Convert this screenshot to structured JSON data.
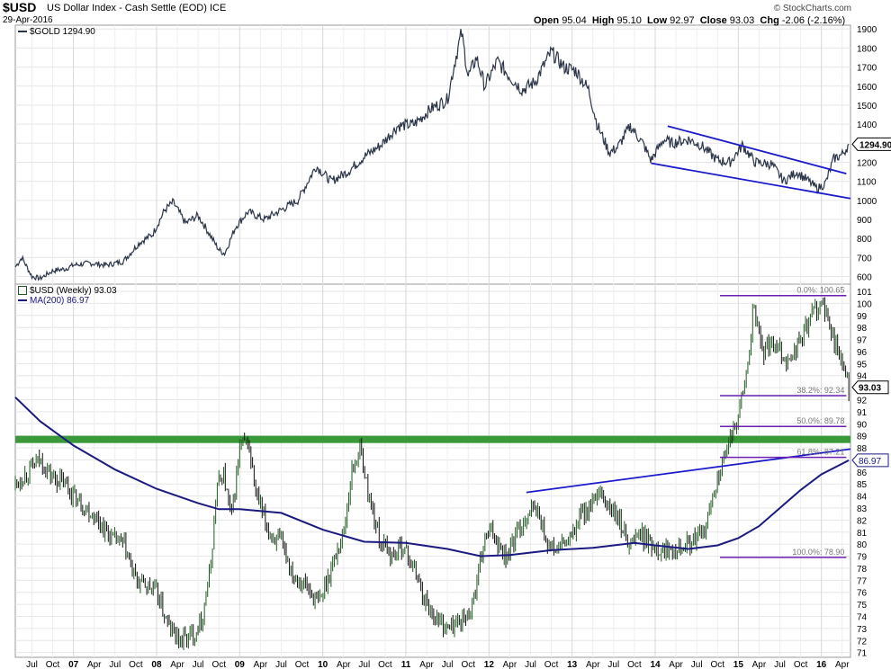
{
  "header": {
    "symbol": "$USD",
    "description": "US Dollar Index - Cash Settle (EOD)  ICE",
    "date": "29-Apr-2016",
    "open_label": "Open",
    "open": "95.04",
    "high_label": "High",
    "high": "95.10",
    "low_label": "Low",
    "low": "92.97",
    "close_label": "Close",
    "close": "93.03",
    "chg_label": "Chg",
    "chg": "-2.06 (-2.16%)",
    "credit": "© StockCharts.com"
  },
  "colors": {
    "gold_line": "#2b3548",
    "usd_bar": "#1f5a1f",
    "ma_line": "#1a1a80",
    "trend_line": "#1a1acc",
    "fib_line": "#6a1fb0",
    "support_band": "#3a9a3a",
    "grid": "#e6e6e6"
  },
  "chart_data": [
    {
      "type": "line",
      "panel": "top",
      "legend": "$GOLD 1294.90",
      "last_value_label": "1294.90",
      "y_ticks": [
        600,
        700,
        800,
        900,
        1000,
        1100,
        1200,
        1300,
        1400,
        1500,
        1600,
        1700,
        1800,
        1900
      ],
      "ylim": [
        560,
        1920
      ],
      "x_decimal_year_range": [
        2006.3,
        2016.35
      ],
      "series": [
        {
          "name": "$GOLD",
          "x": [
            2006.3,
            2006.38,
            2006.5,
            2006.6,
            2006.75,
            2006.9,
            2007.0,
            2007.2,
            2007.4,
            2007.6,
            2007.8,
            2007.95,
            2008.1,
            2008.2,
            2008.35,
            2008.5,
            2008.6,
            2008.75,
            2008.82,
            2008.95,
            2009.1,
            2009.3,
            2009.5,
            2009.7,
            2009.92,
            2010.1,
            2010.3,
            2010.5,
            2010.7,
            2010.9,
            2011.1,
            2011.3,
            2011.5,
            2011.6,
            2011.67,
            2011.75,
            2011.85,
            2011.95,
            2012.1,
            2012.25,
            2012.4,
            2012.55,
            2012.75,
            2012.9,
            2013.05,
            2013.2,
            2013.3,
            2013.45,
            2013.55,
            2013.7,
            2013.85,
            2013.95,
            2014.1,
            2014.2,
            2014.4,
            2014.55,
            2014.75,
            2014.9,
            2015.05,
            2015.2,
            2015.4,
            2015.55,
            2015.7,
            2015.85,
            2015.95,
            2016.05,
            2016.15,
            2016.25,
            2016.33
          ],
          "values": [
            650,
            700,
            600,
            590,
            630,
            640,
            660,
            670,
            660,
            680,
            780,
            820,
            950,
            990,
            880,
            920,
            850,
            740,
            720,
            860,
            940,
            900,
            950,
            1000,
            1180,
            1100,
            1150,
            1230,
            1290,
            1390,
            1400,
            1480,
            1530,
            1750,
            1880,
            1650,
            1750,
            1600,
            1730,
            1650,
            1580,
            1620,
            1780,
            1700,
            1680,
            1580,
            1400,
            1250,
            1280,
            1390,
            1300,
            1210,
            1320,
            1300,
            1320,
            1290,
            1210,
            1200,
            1290,
            1200,
            1190,
            1100,
            1150,
            1100,
            1060,
            1090,
            1220,
            1240,
            1294.9
          ]
        }
      ],
      "trend_lines": [
        {
          "x": [
            2013.95,
            2016.35
          ],
          "values": [
            1195,
            1010
          ]
        },
        {
          "x": [
            2014.15,
            2016.3
          ],
          "values": [
            1390,
            1140
          ]
        }
      ]
    },
    {
      "type": "bar",
      "panel": "bottom",
      "legend": "$USD (Weekly) 93.03",
      "ma_legend": "MA(200) 86.97",
      "last_value_label": "93.03",
      "ma_last_label": "86.97",
      "y_ticks": [
        71,
        72,
        73,
        74,
        75,
        76,
        77,
        78,
        79,
        80,
        81,
        82,
        83,
        84,
        85,
        86,
        87,
        88,
        89,
        90,
        91,
        92,
        93,
        94,
        95,
        96,
        97,
        98,
        99,
        100,
        101
      ],
      "ylim": [
        70.6,
        101.6
      ],
      "x_ticks": [
        {
          "label": "Jul",
          "x": 2006.5
        },
        {
          "label": "Oct",
          "x": 2006.75
        },
        {
          "label": "07",
          "x": 2007.0
        },
        {
          "label": "Apr",
          "x": 2007.25
        },
        {
          "label": "Jul",
          "x": 2007.5
        },
        {
          "label": "Oct",
          "x": 2007.75
        },
        {
          "label": "08",
          "x": 2008.0
        },
        {
          "label": "Apr",
          "x": 2008.25
        },
        {
          "label": "Jul",
          "x": 2008.5
        },
        {
          "label": "Oct",
          "x": 2008.75
        },
        {
          "label": "09",
          "x": 2009.0
        },
        {
          "label": "Apr",
          "x": 2009.25
        },
        {
          "label": "Jul",
          "x": 2009.5
        },
        {
          "label": "Oct",
          "x": 2009.75
        },
        {
          "label": "10",
          "x": 2010.0
        },
        {
          "label": "Apr",
          "x": 2010.25
        },
        {
          "label": "Jul",
          "x": 2010.5
        },
        {
          "label": "Oct",
          "x": 2010.75
        },
        {
          "label": "11",
          "x": 2011.0
        },
        {
          "label": "Apr",
          "x": 2011.25
        },
        {
          "label": "Jul",
          "x": 2011.5
        },
        {
          "label": "Oct",
          "x": 2011.75
        },
        {
          "label": "12",
          "x": 2012.0
        },
        {
          "label": "Apr",
          "x": 2012.25
        },
        {
          "label": "Jul",
          "x": 2012.5
        },
        {
          "label": "Oct",
          "x": 2012.75
        },
        {
          "label": "13",
          "x": 2013.0
        },
        {
          "label": "Apr",
          "x": 2013.25
        },
        {
          "label": "Jul",
          "x": 2013.5
        },
        {
          "label": "Oct",
          "x": 2013.75
        },
        {
          "label": "14",
          "x": 2014.0
        },
        {
          "label": "Apr",
          "x": 2014.25
        },
        {
          "label": "Jul",
          "x": 2014.5
        },
        {
          "label": "Oct",
          "x": 2014.75
        },
        {
          "label": "15",
          "x": 2015.0
        },
        {
          "label": "Apr",
          "x": 2015.25
        },
        {
          "label": "Jul",
          "x": 2015.5
        },
        {
          "label": "Oct",
          "x": 2015.75
        },
        {
          "label": "16",
          "x": 2016.0
        },
        {
          "label": "Apr",
          "x": 2016.25
        }
      ],
      "series": [
        {
          "name": "$USD (Weekly)",
          "x": [
            2006.3,
            2006.45,
            2006.6,
            2006.75,
            2006.9,
            2007.0,
            2007.15,
            2007.3,
            2007.45,
            2007.6,
            2007.75,
            2007.9,
            2008.0,
            2008.15,
            2008.3,
            2008.45,
            2008.55,
            2008.65,
            2008.72,
            2008.8,
            2008.9,
            2009.0,
            2009.1,
            2009.2,
            2009.35,
            2009.5,
            2009.65,
            2009.8,
            2009.95,
            2010.1,
            2010.25,
            2010.35,
            2010.45,
            2010.55,
            2010.7,
            2010.85,
            2010.95,
            2011.1,
            2011.25,
            2011.35,
            2011.5,
            2011.62,
            2011.75,
            2011.85,
            2011.95,
            2012.05,
            2012.2,
            2012.35,
            2012.5,
            2012.6,
            2012.7,
            2012.8,
            2012.9,
            2013.0,
            2013.1,
            2013.2,
            2013.35,
            2013.45,
            2013.55,
            2013.7,
            2013.8,
            2013.95,
            2014.1,
            2014.25,
            2014.4,
            2014.5,
            2014.6,
            2014.7,
            2014.8,
            2014.9,
            2015.0,
            2015.1,
            2015.18,
            2015.3,
            2015.45,
            2015.6,
            2015.75,
            2015.85,
            2015.92,
            2016.0,
            2016.1,
            2016.2,
            2016.33
          ],
          "values": [
            85,
            86,
            87,
            85.5,
            85,
            84,
            83,
            82,
            80.5,
            80,
            77,
            76.5,
            76,
            73,
            72,
            72.5,
            74,
            78,
            84.5,
            86,
            82,
            88,
            88.5,
            84,
            81,
            80,
            77.5,
            76.5,
            75,
            78,
            81,
            86,
            88,
            84,
            80,
            79,
            80,
            78,
            75,
            74,
            73,
            73.5,
            74,
            76.5,
            80.5,
            81,
            79,
            81,
            83,
            82.5,
            80,
            79.5,
            80,
            80.5,
            82.5,
            83,
            84,
            83,
            82,
            80,
            81,
            80,
            79.5,
            80,
            80,
            80.5,
            81,
            84.5,
            86.5,
            88.5,
            91,
            94,
            99.5,
            96,
            97,
            95,
            97,
            98.5,
            99.5,
            100,
            98,
            96,
            93.03
          ]
        }
      ],
      "ma_series": {
        "name": "MA(200)",
        "x": [
          2006.3,
          2006.6,
          2007.0,
          2007.5,
          2008.0,
          2008.5,
          2008.75,
          2009.0,
          2009.5,
          2010.0,
          2010.5,
          2011.0,
          2011.5,
          2011.9,
          2012.25,
          2012.75,
          2013.25,
          2013.75,
          2014.0,
          2014.4,
          2014.75,
          2015.0,
          2015.25,
          2015.5,
          2015.75,
          2016.0,
          2016.33
        ],
        "values": [
          92.2,
          90.2,
          88.2,
          86.2,
          84.6,
          83.4,
          82.9,
          82.9,
          82.6,
          81.2,
          80.2,
          80.1,
          79.6,
          79.0,
          79.1,
          79.5,
          79.7,
          80.1,
          79.9,
          79.6,
          79.9,
          80.5,
          81.5,
          83,
          84.5,
          85.8,
          86.97
        ]
      },
      "support_band": {
        "low": 88.4,
        "high": 89.0
      },
      "trend_line": {
        "x": [
          2012.45,
          2016.35
        ],
        "values": [
          84.3,
          87.9
        ]
      },
      "fib_levels": [
        {
          "label": "0.0%: 100.65",
          "value": 100.65
        },
        {
          "label": "38.2%: 92.34",
          "value": 92.34
        },
        {
          "label": "50.0%: 89.78",
          "value": 89.78
        },
        {
          "label": "61.8%: 87.21",
          "value": 87.21
        },
        {
          "label": "100.0%: 78.90",
          "value": 78.9
        }
      ],
      "fib_x": [
        2014.78,
        2016.3
      ]
    }
  ]
}
